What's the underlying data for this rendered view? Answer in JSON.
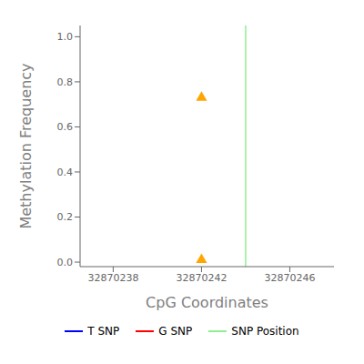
{
  "chart_data": {
    "type": "scatter",
    "xlabel": "CpG Coordinates",
    "ylabel": "Methylation Frequency",
    "xlim": [
      32870236.5,
      32870248
    ],
    "ylim": [
      -0.02,
      1.05
    ],
    "xticks": [
      32870238,
      32870242,
      32870246
    ],
    "yticks": [
      {
        "value": 0.0,
        "label": "0.0"
      },
      0.2,
      0.4,
      0.6,
      0.8,
      {
        "value": 1.0,
        "label": "1.0"
      }
    ],
    "legend": "bottom",
    "series": [
      {
        "name": "T SNP",
        "color": "blue",
        "type": "line",
        "line_style": "solid",
        "x": [],
        "values": []
      },
      {
        "name": "G SNP",
        "color": "red",
        "type": "line",
        "line_style": "solid",
        "x": [],
        "values": []
      },
      {
        "name": "SNP Position",
        "color": "#90EE90",
        "type": "vline",
        "line_style": "solid",
        "x": [
          32870244
        ]
      },
      {
        "color": "#FFA500",
        "type": "scatter",
        "marker": "triangle",
        "x": [
          32870242,
          32870242
        ],
        "values": [
          0.73,
          0.01
        ]
      }
    ]
  }
}
